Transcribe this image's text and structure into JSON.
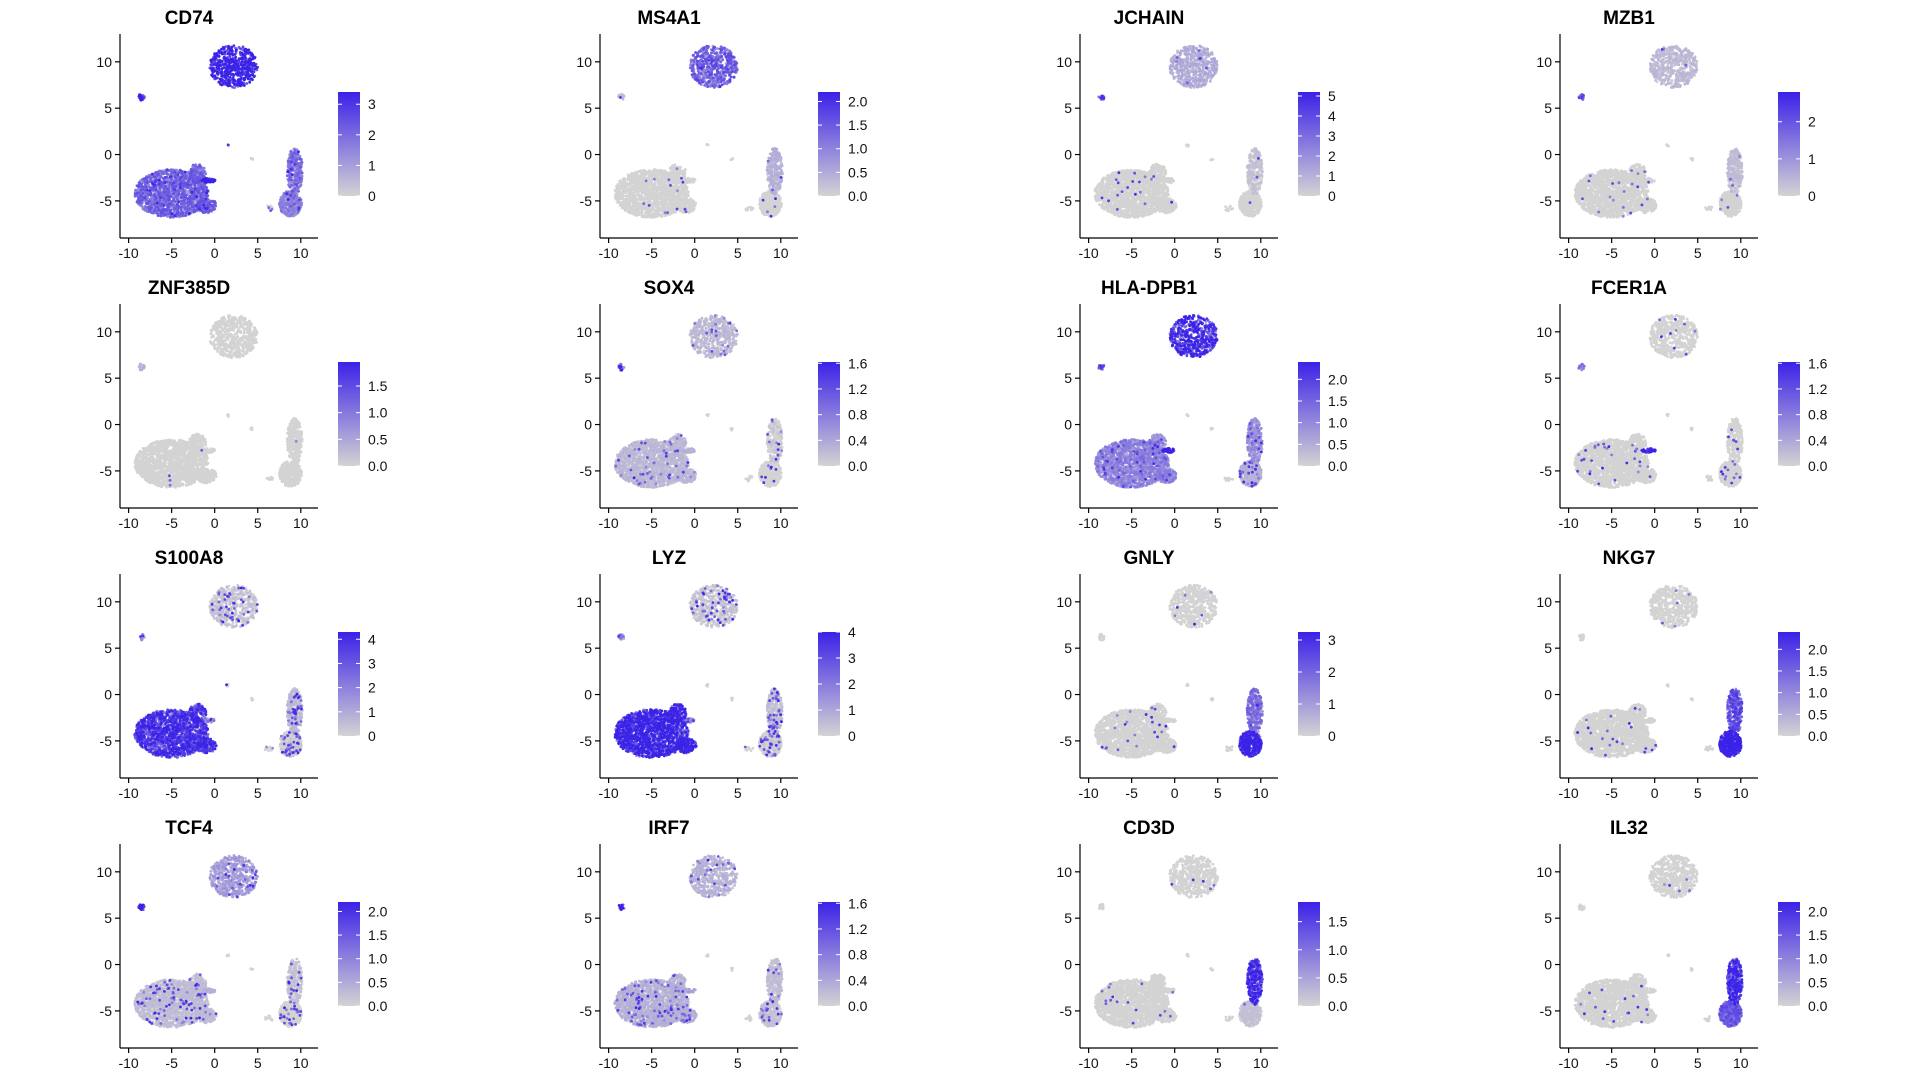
{
  "figure": {
    "background": "#ffffff",
    "low_color": "#d3d3d3",
    "high_color": "#3b22e8"
  },
  "chart_data": [
    {
      "type": "scatter",
      "title": "CD74",
      "x_ticks": [
        "-10",
        "-5",
        "0",
        "5",
        "10"
      ],
      "y_ticks": [
        "-5",
        "0",
        "5",
        "10"
      ],
      "xlim": [
        -11,
        12
      ],
      "ylim": [
        -9,
        13
      ],
      "legend_max": 3.4,
      "legend_ticks": [
        {
          "value": 3,
          "label": "3"
        },
        {
          "value": 2,
          "label": "2"
        },
        {
          "value": 1,
          "label": "1"
        },
        {
          "value": 0,
          "label": "0"
        }
      ],
      "cluster_levels": {
        "top": 0.95,
        "small": 0.9,
        "myeloid": 0.5,
        "hotspot": 0.95,
        "nk_upper": 0.45,
        "nk_lower": 0.35
      },
      "speckle": 0.3
    },
    {
      "type": "scatter",
      "title": "MS4A1",
      "x_ticks": [
        "-10",
        "-5",
        "0",
        "5",
        "10"
      ],
      "y_ticks": [
        "-5",
        "0",
        "5",
        "10"
      ],
      "xlim": [
        -11,
        12
      ],
      "ylim": [
        -9,
        13
      ],
      "legend_max": 2.2,
      "legend_ticks": [
        {
          "value": 2.0,
          "label": "2.0"
        },
        {
          "value": 1.5,
          "label": "1.5"
        },
        {
          "value": 1.0,
          "label": "1.0"
        },
        {
          "value": 0.5,
          "label": "0.5"
        },
        {
          "value": 0.0,
          "label": "0.0"
        }
      ],
      "cluster_levels": {
        "top": 0.55,
        "small": 0.1,
        "myeloid": 0.02,
        "hotspot": 0.05,
        "nk_upper": 0.15,
        "nk_lower": 0.05
      },
      "speckle": 0.05
    },
    {
      "type": "scatter",
      "title": "JCHAIN",
      "x_ticks": [
        "-10",
        "-5",
        "0",
        "5",
        "10"
      ],
      "y_ticks": [
        "-5",
        "0",
        "5",
        "10"
      ],
      "xlim": [
        -11,
        12
      ],
      "ylim": [
        -9,
        13
      ],
      "legend_max": 5.2,
      "legend_ticks": [
        {
          "value": 5,
          "label": "5"
        },
        {
          "value": 4,
          "label": "4"
        },
        {
          "value": 3,
          "label": "3"
        },
        {
          "value": 2,
          "label": "2"
        },
        {
          "value": 1,
          "label": "1"
        },
        {
          "value": 0,
          "label": "0"
        }
      ],
      "cluster_levels": {
        "top": 0.18,
        "small": 0.7,
        "myeloid": 0.02,
        "hotspot": 0.05,
        "nk_upper": 0.08,
        "nk_lower": 0.02
      },
      "speckle": 0.04
    },
    {
      "type": "scatter",
      "title": "MZB1",
      "x_ticks": [
        "-10",
        "-5",
        "0",
        "5",
        "10"
      ],
      "y_ticks": [
        "-5",
        "0",
        "5",
        "10"
      ],
      "xlim": [
        -11,
        12
      ],
      "ylim": [
        -9,
        13
      ],
      "legend_max": 2.8,
      "legend_ticks": [
        {
          "value": 2,
          "label": "2"
        },
        {
          "value": 1,
          "label": "1"
        },
        {
          "value": 0,
          "label": "0"
        }
      ],
      "cluster_levels": {
        "top": 0.12,
        "small": 0.6,
        "myeloid": 0.02,
        "hotspot": 0.05,
        "nk_upper": 0.1,
        "nk_lower": 0.02
      },
      "speckle": 0.04
    },
    {
      "type": "scatter",
      "title": "ZNF385D",
      "x_ticks": [
        "-10",
        "-5",
        "0",
        "5",
        "10"
      ],
      "y_ticks": [
        "-5",
        "0",
        "5",
        "10"
      ],
      "xlim": [
        -11,
        12
      ],
      "ylim": [
        -9,
        13
      ],
      "legend_max": 1.95,
      "legend_ticks": [
        {
          "value": 1.5,
          "label": "1.5"
        },
        {
          "value": 1.0,
          "label": "1.0"
        },
        {
          "value": 0.5,
          "label": "0.5"
        },
        {
          "value": 0.0,
          "label": "0.0"
        }
      ],
      "cluster_levels": {
        "top": 0.02,
        "small": 0.15,
        "myeloid": 0.0,
        "hotspot": 0.0,
        "nk_upper": 0.0,
        "nk_lower": 0.0
      },
      "speckle": 0.005
    },
    {
      "type": "scatter",
      "title": "SOX4",
      "x_ticks": [
        "-10",
        "-5",
        "0",
        "5",
        "10"
      ],
      "y_ticks": [
        "-5",
        "0",
        "5",
        "10"
      ],
      "xlim": [
        -11,
        12
      ],
      "ylim": [
        -9,
        13
      ],
      "legend_max": 1.62,
      "legend_ticks": [
        {
          "value": 1.6,
          "label": "1.6"
        },
        {
          "value": 1.2,
          "label": "1.2"
        },
        {
          "value": 0.8,
          "label": "0.8"
        },
        {
          "value": 0.4,
          "label": "0.4"
        },
        {
          "value": 0.0,
          "label": "0.0"
        }
      ],
      "cluster_levels": {
        "top": 0.12,
        "small": 0.7,
        "myeloid": 0.12,
        "hotspot": 0.15,
        "nk_upper": 0.06,
        "nk_lower": 0.05
      },
      "speckle": 0.12
    },
    {
      "type": "scatter",
      "title": "HLA-DPB1",
      "x_ticks": [
        "-10",
        "-5",
        "0",
        "5",
        "10"
      ],
      "y_ticks": [
        "-5",
        "0",
        "5",
        "10"
      ],
      "xlim": [
        -11,
        12
      ],
      "ylim": [
        -9,
        13
      ],
      "legend_max": 2.4,
      "legend_ticks": [
        {
          "value": 2.0,
          "label": "2.0"
        },
        {
          "value": 1.5,
          "label": "1.5"
        },
        {
          "value": 1.0,
          "label": "1.0"
        },
        {
          "value": 0.5,
          "label": "0.5"
        },
        {
          "value": 0.0,
          "label": "0.0"
        }
      ],
      "cluster_levels": {
        "top": 0.8,
        "small": 0.6,
        "myeloid": 0.35,
        "hotspot": 0.9,
        "nk_upper": 0.3,
        "nk_lower": 0.15
      },
      "speckle": 0.25
    },
    {
      "type": "scatter",
      "title": "FCER1A",
      "x_ticks": [
        "-10",
        "-5",
        "0",
        "5",
        "10"
      ],
      "y_ticks": [
        "-5",
        "0",
        "5",
        "10"
      ],
      "xlim": [
        -11,
        12
      ],
      "ylim": [
        -9,
        13
      ],
      "legend_max": 1.62,
      "legend_ticks": [
        {
          "value": 1.6,
          "label": "1.6"
        },
        {
          "value": 1.2,
          "label": "1.2"
        },
        {
          "value": 0.8,
          "label": "0.8"
        },
        {
          "value": 0.4,
          "label": "0.4"
        },
        {
          "value": 0.0,
          "label": "0.0"
        }
      ],
      "cluster_levels": {
        "top": 0.02,
        "small": 0.4,
        "myeloid": 0.04,
        "hotspot": 0.9,
        "nk_upper": 0.02,
        "nk_lower": 0.0
      },
      "speckle": 0.06
    },
    {
      "type": "scatter",
      "title": "S100A8",
      "x_ticks": [
        "-10",
        "-5",
        "0",
        "5",
        "10"
      ],
      "y_ticks": [
        "-5",
        "0",
        "5",
        "10"
      ],
      "xlim": [
        -11,
        12
      ],
      "ylim": [
        -9,
        13
      ],
      "legend_max": 4.3,
      "legend_ticks": [
        {
          "value": 4,
          "label": "4"
        },
        {
          "value": 3,
          "label": "3"
        },
        {
          "value": 2,
          "label": "2"
        },
        {
          "value": 1,
          "label": "1"
        },
        {
          "value": 0,
          "label": "0"
        }
      ],
      "cluster_levels": {
        "top": 0.08,
        "small": 0.3,
        "myeloid": 0.7,
        "hotspot": 0.2,
        "nk_upper": 0.12,
        "nk_lower": 0.06
      },
      "speckle": 0.4
    },
    {
      "type": "scatter",
      "title": "LYZ",
      "x_ticks": [
        "-10",
        "-5",
        "0",
        "5",
        "10"
      ],
      "y_ticks": [
        "-5",
        "0",
        "5",
        "10"
      ],
      "xlim": [
        -11,
        12
      ],
      "ylim": [
        -9,
        13
      ],
      "legend_max": 4.0,
      "legend_ticks": [
        {
          "value": 4,
          "label": "4"
        },
        {
          "value": 3,
          "label": "3"
        },
        {
          "value": 2,
          "label": "2"
        },
        {
          "value": 1,
          "label": "1"
        },
        {
          "value": 0,
          "label": "0"
        }
      ],
      "cluster_levels": {
        "top": 0.08,
        "small": 0.3,
        "myeloid": 0.8,
        "hotspot": 0.3,
        "nk_upper": 0.1,
        "nk_lower": 0.06
      },
      "speckle": 0.45
    },
    {
      "type": "scatter",
      "title": "GNLY",
      "x_ticks": [
        "-10",
        "-5",
        "0",
        "5",
        "10"
      ],
      "y_ticks": [
        "-5",
        "0",
        "5",
        "10"
      ],
      "xlim": [
        -11,
        12
      ],
      "ylim": [
        -9,
        13
      ],
      "legend_max": 3.25,
      "legend_ticks": [
        {
          "value": 3,
          "label": "3"
        },
        {
          "value": 2,
          "label": "2"
        },
        {
          "value": 1,
          "label": "1"
        },
        {
          "value": 0,
          "label": "0"
        }
      ],
      "cluster_levels": {
        "top": 0.05,
        "small": 0.05,
        "myeloid": 0.02,
        "hotspot": 0.02,
        "nk_upper": 0.45,
        "nk_lower": 0.85
      },
      "speckle": 0.05
    },
    {
      "type": "scatter",
      "title": "NKG7",
      "x_ticks": [
        "-10",
        "-5",
        "0",
        "5",
        "10"
      ],
      "y_ticks": [
        "-5",
        "0",
        "5",
        "10"
      ],
      "xlim": [
        -11,
        12
      ],
      "ylim": [
        -9,
        13
      ],
      "legend_max": 2.4,
      "legend_ticks": [
        {
          "value": 2.0,
          "label": "2.0"
        },
        {
          "value": 1.5,
          "label": "1.5"
        },
        {
          "value": 1.0,
          "label": "1.0"
        },
        {
          "value": 0.5,
          "label": "0.5"
        },
        {
          "value": 0.0,
          "label": "0.0"
        }
      ],
      "cluster_levels": {
        "top": 0.05,
        "small": 0.05,
        "myeloid": 0.04,
        "hotspot": 0.03,
        "nk_upper": 0.6,
        "nk_lower": 0.9
      },
      "speckle": 0.06
    },
    {
      "type": "scatter",
      "title": "TCF4",
      "x_ticks": [
        "-10",
        "-5",
        "0",
        "5",
        "10"
      ],
      "y_ticks": [
        "-5",
        "0",
        "5",
        "10"
      ],
      "xlim": [
        -11,
        12
      ],
      "ylim": [
        -9,
        13
      ],
      "legend_max": 2.2,
      "legend_ticks": [
        {
          "value": 2.0,
          "label": "2.0"
        },
        {
          "value": 1.5,
          "label": "1.5"
        },
        {
          "value": 1.0,
          "label": "1.0"
        },
        {
          "value": 0.5,
          "label": "0.5"
        },
        {
          "value": 0.0,
          "label": "0.0"
        }
      ],
      "cluster_levels": {
        "top": 0.25,
        "small": 0.95,
        "myeloid": 0.1,
        "hotspot": 0.15,
        "nk_upper": 0.08,
        "nk_lower": 0.05
      },
      "speckle": 0.2
    },
    {
      "type": "scatter",
      "title": "IRF7",
      "x_ticks": [
        "-10",
        "-5",
        "0",
        "5",
        "10"
      ],
      "y_ticks": [
        "-5",
        "0",
        "5",
        "10"
      ],
      "xlim": [
        -11,
        12
      ],
      "ylim": [
        -9,
        13
      ],
      "legend_max": 1.62,
      "legend_ticks": [
        {
          "value": 1.6,
          "label": "1.6"
        },
        {
          "value": 1.2,
          "label": "1.2"
        },
        {
          "value": 0.8,
          "label": "0.8"
        },
        {
          "value": 0.4,
          "label": "0.4"
        },
        {
          "value": 0.0,
          "label": "0.0"
        }
      ],
      "cluster_levels": {
        "top": 0.15,
        "small": 0.85,
        "myeloid": 0.15,
        "hotspot": 0.2,
        "nk_upper": 0.1,
        "nk_lower": 0.08
      },
      "speckle": 0.18
    },
    {
      "type": "scatter",
      "title": "CD3D",
      "x_ticks": [
        "-10",
        "-5",
        "0",
        "5",
        "10"
      ],
      "y_ticks": [
        "-5",
        "0",
        "5",
        "10"
      ],
      "xlim": [
        -11,
        12
      ],
      "ylim": [
        -9,
        13
      ],
      "legend_max": 1.85,
      "legend_ticks": [
        {
          "value": 1.5,
          "label": "1.5"
        },
        {
          "value": 1.0,
          "label": "1.0"
        },
        {
          "value": 0.5,
          "label": "0.5"
        },
        {
          "value": 0.0,
          "label": "0.0"
        }
      ],
      "cluster_levels": {
        "top": 0.02,
        "small": 0.02,
        "myeloid": 0.02,
        "hotspot": 0.02,
        "nk_upper": 0.75,
        "nk_lower": 0.08
      },
      "speckle": 0.03
    },
    {
      "type": "scatter",
      "title": "IL32",
      "x_ticks": [
        "-10",
        "-5",
        "0",
        "5",
        "10"
      ],
      "y_ticks": [
        "-5",
        "0",
        "5",
        "10"
      ],
      "xlim": [
        -11,
        12
      ],
      "ylim": [
        -9,
        13
      ],
      "legend_max": 2.2,
      "legend_ticks": [
        {
          "value": 2.0,
          "label": "2.0"
        },
        {
          "value": 1.5,
          "label": "1.5"
        },
        {
          "value": 1.0,
          "label": "1.0"
        },
        {
          "value": 0.5,
          "label": "0.5"
        },
        {
          "value": 0.0,
          "label": "0.0"
        }
      ],
      "cluster_levels": {
        "top": 0.04,
        "small": 0.02,
        "myeloid": 0.03,
        "hotspot": 0.02,
        "nk_upper": 0.75,
        "nk_lower": 0.55
      },
      "speckle": 0.05
    }
  ]
}
